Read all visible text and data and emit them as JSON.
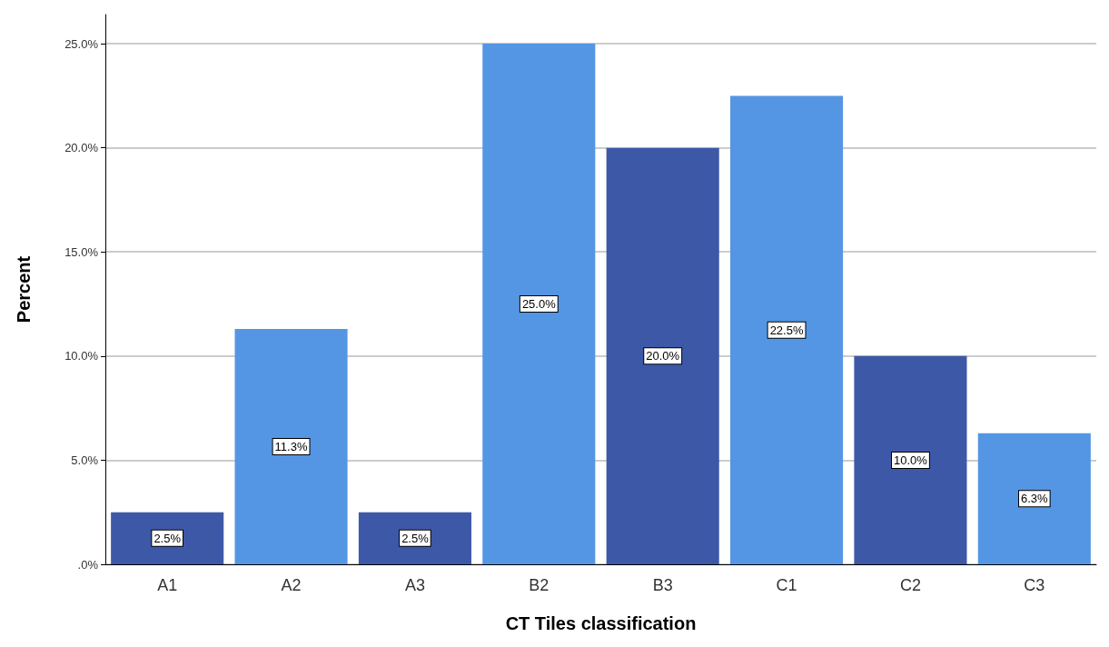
{
  "chart_data": {
    "type": "bar",
    "xlabel": "CT Tiles classification",
    "ylabel": "Percent",
    "categories": [
      "A1",
      "A2",
      "A3",
      "B2",
      "B3",
      "C1",
      "C2",
      "C3"
    ],
    "values": [
      2.5,
      11.3,
      2.5,
      25.0,
      20.0,
      22.5,
      10.0,
      6.3
    ],
    "colors": [
      "#3e58a8",
      "#5496e3",
      "#3e58a8",
      "#5496e3",
      "#3e58a8",
      "#5496e3",
      "#3e58a8",
      "#5496e3"
    ],
    "value_labels": [
      "2.5%",
      "11.3%",
      "2.5%",
      "25.0%",
      "20.0%",
      "22.5%",
      "10.0%",
      "6.3%"
    ],
    "ylim": [
      0,
      26.4
    ],
    "yticks": [
      {
        "value": 0,
        "label": ".0%"
      },
      {
        "value": 5,
        "label": "5.0%"
      },
      {
        "value": 10,
        "label": "10.0%"
      },
      {
        "value": 15,
        "label": "15.0%"
      },
      {
        "value": 20,
        "label": "20.0%"
      },
      {
        "value": 25,
        "label": "25.0%"
      }
    ],
    "grid": "y"
  }
}
